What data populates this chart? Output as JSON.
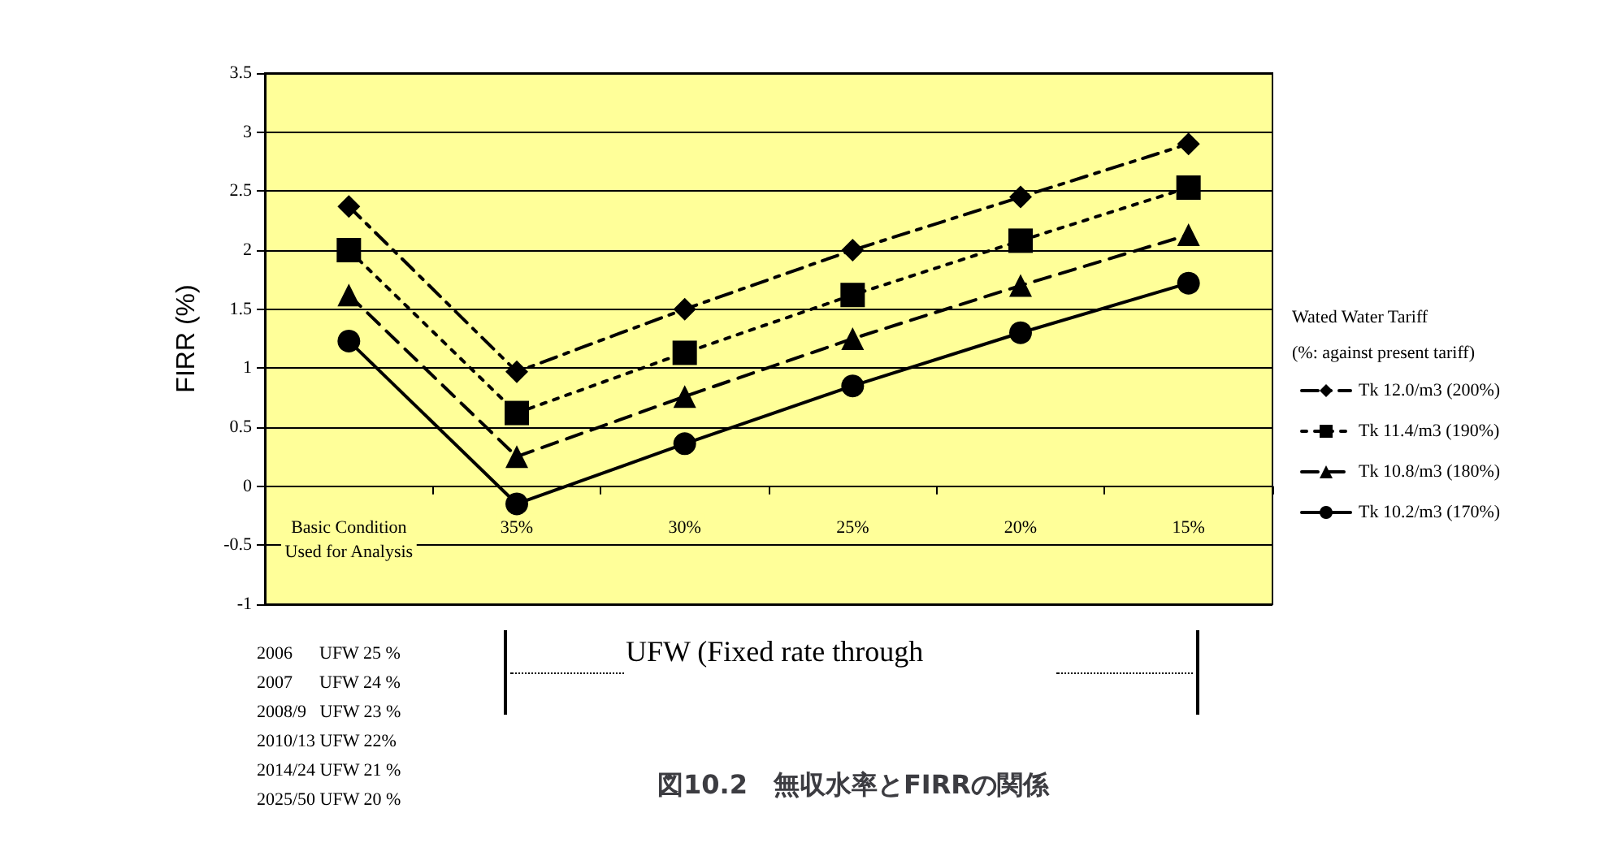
{
  "chart_data": {
    "type": "line",
    "title": "図10.2　無収水率とFIRRの関係",
    "ylabel": "FIRR (%)",
    "legend_title": "Wated Water Tariff",
    "legend": "right",
    "grid": "y",
    "categories": [
      "Basic Condition\nUsed for Analysis",
      "35%",
      "30%",
      "25%",
      "20%",
      "15%"
    ],
    "ylim": [
      -1,
      3.5
    ],
    "yticks": [
      -1,
      -0.5,
      0,
      0.5,
      1,
      1.5,
      2,
      2.5,
      3,
      3.5
    ],
    "series": [
      {
        "name": "Tk 12.0/m3 (200%)",
        "color": "#000000",
        "marker": "diamond",
        "line_style": "dashdot",
        "values": [
          2.37,
          0.97,
          1.5,
          2.0,
          2.45,
          2.9
        ]
      },
      {
        "name": "Tk 11.4/m3 (190%)",
        "color": "#000000",
        "marker": "square",
        "line_style": "dotted",
        "values": [
          2.0,
          0.62,
          1.13,
          1.62,
          2.08,
          2.53
        ]
      },
      {
        "name": "Tk 10.8/m3 (180%)",
        "color": "#000000",
        "marker": "triangle",
        "line_style": "dashed",
        "values": [
          1.62,
          0.25,
          0.76,
          1.25,
          1.7,
          2.13
        ]
      },
      {
        "name": "Tk 10.2/m3 (170%)",
        "color": "#000000",
        "marker": "circle",
        "line_style": "solid",
        "values": [
          1.23,
          -0.15,
          0.36,
          0.85,
          1.3,
          1.72
        ]
      }
    ],
    "annotations": [
      "(%: against present tariff)",
      "UFW (Fixed rate through",
      "2006      UFW 25 %",
      "2007      UFW 24 %",
      "2008/9   UFW 23 %",
      "2010/13 UFW 22%",
      "2014/24 UFW 21 %",
      "2025/50 UFW 20 %"
    ]
  }
}
